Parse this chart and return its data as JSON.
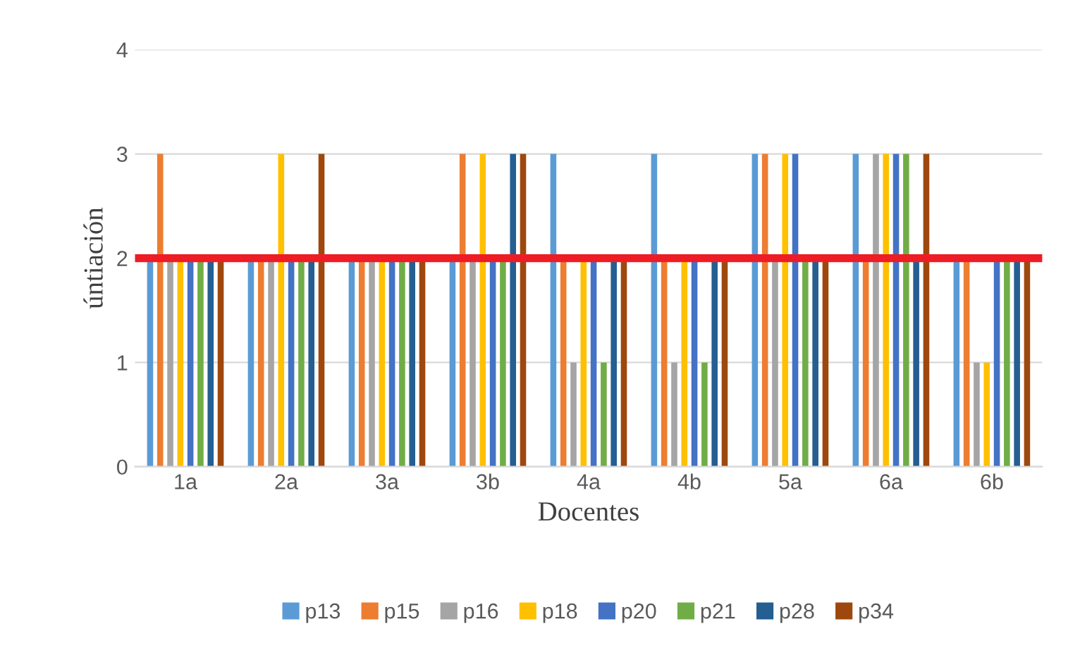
{
  "chart_data": {
    "type": "bar",
    "xlabel": "Docentes",
    "ylabel": "úntiación",
    "categories": [
      "1a",
      "2a",
      "3a",
      "3b",
      "4a",
      "4b",
      "5a",
      "6a",
      "6b"
    ],
    "series": [
      {
        "name": "p13",
        "color": "#5b9bd5",
        "values": [
          2,
          2,
          2,
          2,
          3,
          3,
          3,
          3,
          2
        ]
      },
      {
        "name": "p15",
        "color": "#ed7d31",
        "values": [
          3,
          2,
          2,
          3,
          2,
          2,
          3,
          2,
          2
        ]
      },
      {
        "name": "p16",
        "color": "#a5a5a5",
        "values": [
          2,
          2,
          2,
          2,
          1,
          1,
          2,
          3,
          1
        ]
      },
      {
        "name": "p18",
        "color": "#ffc000",
        "values": [
          2,
          3,
          2,
          3,
          2,
          2,
          3,
          3,
          1
        ]
      },
      {
        "name": "p20",
        "color": "#4472c4",
        "values": [
          2,
          2,
          2,
          2,
          2,
          2,
          3,
          3,
          2
        ]
      },
      {
        "name": "p21",
        "color": "#70ad47",
        "values": [
          2,
          2,
          2,
          2,
          1,
          1,
          2,
          3,
          2
        ]
      },
      {
        "name": "p28",
        "color": "#255e91",
        "values": [
          2,
          2,
          2,
          3,
          2,
          2,
          2,
          2,
          2
        ]
      },
      {
        "name": "p34",
        "color": "#9e480e",
        "values": [
          2,
          3,
          2,
          3,
          2,
          2,
          2,
          3,
          2
        ]
      }
    ],
    "ylim": [
      0,
      4
    ],
    "yticks": [
      0,
      1,
      2,
      3,
      4
    ],
    "grid": "y",
    "legend": "bottom",
    "ref_lines": [
      {
        "axis": "y",
        "value": 2,
        "color": "#ee1c25"
      }
    ]
  }
}
